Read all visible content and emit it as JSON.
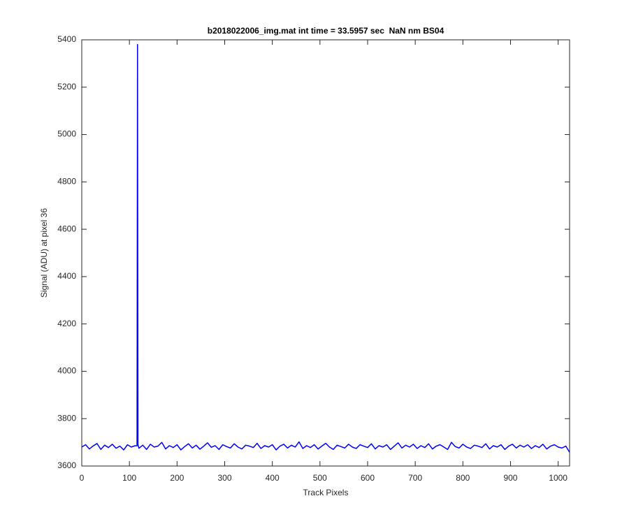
{
  "chart_data": {
    "type": "line",
    "title": "b2018022006_img.mat int time = 33.5957 sec  NaN nm BS04",
    "x_label": "Track Pixels",
    "y_label": "Signal (ADU) at pixel 36",
    "color": "#0000ff",
    "xlim": [
      0,
      1024
    ],
    "ylim": [
      3600,
      5400
    ],
    "xticks": [
      0,
      100,
      200,
      300,
      400,
      500,
      600,
      700,
      800,
      900,
      1000
    ],
    "yticks": [
      3600,
      3800,
      4000,
      4200,
      4400,
      4600,
      4800,
      5000,
      5200,
      5400
    ],
    "x": [
      0,
      8,
      16,
      24,
      32,
      40,
      48,
      56,
      64,
      72,
      80,
      88,
      96,
      104,
      112,
      116,
      117,
      118,
      120,
      128,
      136,
      144,
      152,
      160,
      168,
      176,
      184,
      192,
      200,
      208,
      216,
      224,
      232,
      240,
      248,
      256,
      264,
      272,
      280,
      288,
      296,
      304,
      312,
      320,
      328,
      336,
      344,
      352,
      360,
      368,
      376,
      384,
      392,
      400,
      408,
      416,
      424,
      432,
      440,
      448,
      456,
      464,
      472,
      480,
      488,
      496,
      504,
      512,
      520,
      528,
      536,
      544,
      552,
      560,
      568,
      576,
      584,
      592,
      600,
      608,
      616,
      624,
      632,
      640,
      648,
      656,
      664,
      672,
      680,
      688,
      696,
      704,
      712,
      720,
      728,
      736,
      744,
      752,
      760,
      768,
      776,
      784,
      792,
      800,
      808,
      816,
      824,
      832,
      840,
      848,
      856,
      864,
      872,
      880,
      888,
      896,
      904,
      912,
      920,
      928,
      936,
      944,
      952,
      960,
      968,
      976,
      984,
      992,
      1000,
      1008,
      1016,
      1024
    ],
    "values": [
      3680,
      3690,
      3672,
      3685,
      3695,
      3670,
      3688,
      3678,
      3692,
      3675,
      3684,
      3668,
      3690,
      3680,
      3686,
      3685,
      5380,
      3690,
      3675,
      3688,
      3670,
      3692,
      3680,
      3684,
      3700,
      3672,
      3686,
      3678,
      3690,
      3668,
      3682,
      3694,
      3676,
      3688,
      3671,
      3684,
      3698,
      3679,
      3686,
      3670,
      3690,
      3682,
      3676,
      3694,
      3680,
      3672,
      3688,
      3684,
      3678,
      3696,
      3674,
      3686,
      3680,
      3690,
      3668,
      3684,
      3692,
      3676,
      3688,
      3680,
      3702,
      3674,
      3686,
      3678,
      3690,
      3672,
      3684,
      3696,
      3680,
      3670,
      3688,
      3682,
      3676,
      3692,
      3680,
      3674,
      3690,
      3684,
      3678,
      3694,
      3672,
      3686,
      3680,
      3690,
      3670,
      3684,
      3698,
      3676,
      3688,
      3680,
      3692,
      3674,
      3686,
      3678,
      3694,
      3672,
      3684,
      3690,
      3680,
      3670,
      3700,
      3682,
      3676,
      3692,
      3680,
      3674,
      3688,
      3684,
      3678,
      3694,
      3672,
      3686,
      3680,
      3690,
      3670,
      3684,
      3692,
      3676,
      3688,
      3680,
      3690,
      3674,
      3686,
      3678,
      3692,
      3672,
      3684,
      3690,
      3680,
      3676,
      3684,
      3658
    ]
  }
}
